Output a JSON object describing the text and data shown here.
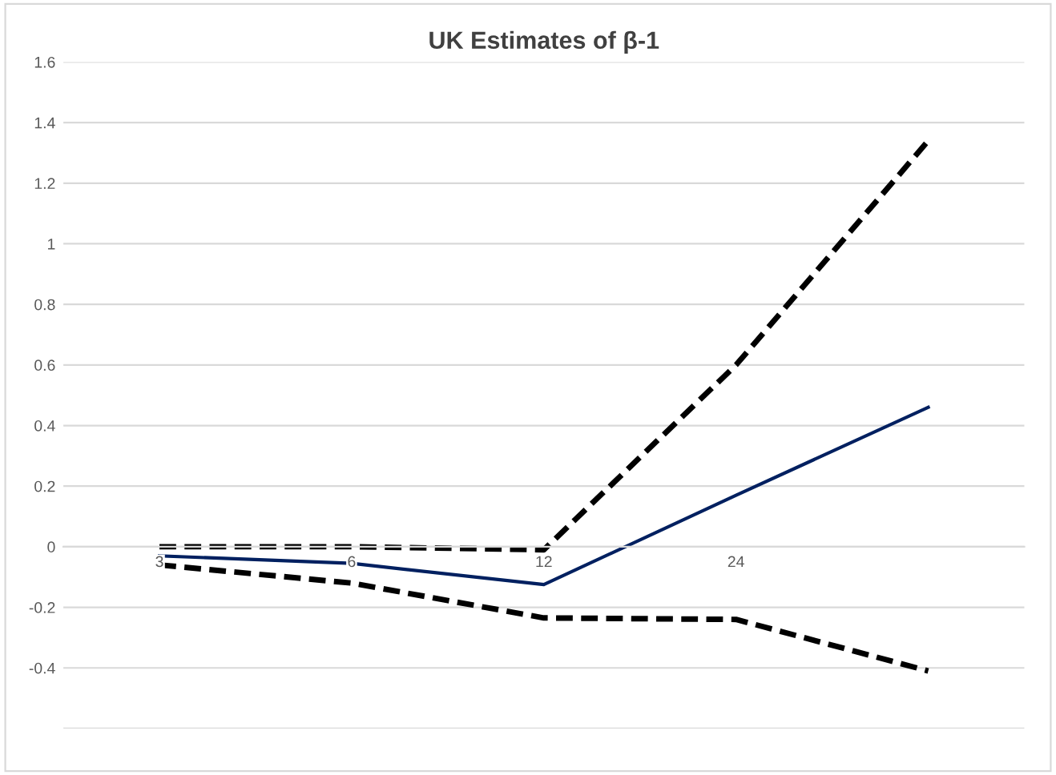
{
  "chart_data": {
    "type": "line",
    "title": "UK Estimates of β-1",
    "categories": [
      "3",
      "6",
      "12",
      "24",
      null
    ],
    "series": [
      {
        "color": "#000000",
        "line_style": "dashed",
        "values": [
          0,
          0,
          -0.01,
          0.6,
          1.34
        ]
      },
      {
        "color": "#002060",
        "line_style": "solid",
        "values": [
          -0.03,
          -0.055,
          -0.125,
          0.17,
          0.46
        ]
      },
      {
        "color": "#000000",
        "line_style": "dashed",
        "values": [
          -0.06,
          -0.12,
          -0.235,
          -0.24,
          -0.41
        ]
      }
    ],
    "ylim": [
      -0.6,
      1.6
    ],
    "yticks": [
      {
        "value": -0.6,
        "label": null
      },
      -0.4,
      -0.2,
      0,
      0.2,
      0.4,
      0.6,
      0.8,
      1,
      1.2,
      1.4,
      1.6
    ],
    "grid": "y",
    "marker": "none"
  }
}
